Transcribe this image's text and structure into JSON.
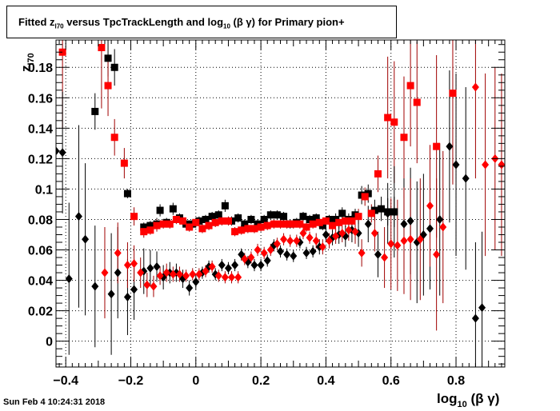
{
  "title": {
    "prefix": "Fitted  z",
    "prefix_sub": "I70",
    "middle": "  versus TpcTrackLength and log",
    "middle_sub": "10",
    "suffix": " (β γ) for Primary pion+"
  },
  "footer": "Sun Feb  4 10:24:31 2018",
  "chart_data": {
    "type": "scatter",
    "title": "Fitted z_I70 versus TpcTrackLength and log10 (β γ) for Primary pion+",
    "xlabel": {
      "main": "log",
      "sub": "10",
      "rest": " (β γ)"
    },
    "ylabel": {
      "main": "z",
      "sub": "I70"
    },
    "xlim": [
      -0.43,
      0.95
    ],
    "ylim": [
      -0.017,
      0.198
    ],
    "x_ticks": [
      -0.4,
      -0.2,
      0,
      0.2,
      0.4,
      0.6,
      0.8
    ],
    "x_tick_labels": [
      "−0.4",
      "−0.2",
      "0",
      "0.2",
      "0.4",
      "0.6",
      "0.8"
    ],
    "y_ticks": [
      0,
      0.02,
      0.04,
      0.06,
      0.08,
      0.1,
      0.12,
      0.14,
      0.16,
      0.18
    ],
    "y_tick_labels": [
      "0",
      "0.02",
      "0.04",
      "0.06",
      "0.08",
      "0.1",
      "0.12",
      "0.14",
      "0.16",
      "0.18"
    ],
    "grid": true,
    "colors": {
      "black": "#000000",
      "red": "#ff0000",
      "redbar": "#a00000"
    },
    "series": [
      {
        "marker": "square",
        "color": "#000000",
        "points": [
          [
            -0.31,
            0.151,
            0.012
          ],
          [
            -0.27,
            0.186,
            0.012
          ],
          [
            -0.25,
            0.18,
            0.012
          ],
          [
            -0.21,
            0.097,
            0.003
          ],
          [
            -0.16,
            0.075,
            0.003
          ],
          [
            -0.14,
            0.076,
            0.003
          ],
          [
            -0.12,
            0.077,
            0.004
          ],
          [
            -0.11,
            0.086,
            0.004
          ],
          [
            -0.09,
            0.078,
            0.003
          ],
          [
            -0.07,
            0.087,
            0.004
          ],
          [
            -0.05,
            0.081,
            0.003
          ],
          [
            -0.03,
            0.077,
            0.003
          ],
          [
            -0.01,
            0.077,
            0.003
          ],
          [
            0.01,
            0.079,
            0.003
          ],
          [
            0.03,
            0.08,
            0.003
          ],
          [
            0.05,
            0.082,
            0.003
          ],
          [
            0.07,
            0.083,
            0.003
          ],
          [
            0.09,
            0.089,
            0.004
          ],
          [
            0.11,
            0.079,
            0.003
          ],
          [
            0.13,
            0.081,
            0.003
          ],
          [
            0.15,
            0.077,
            0.003
          ],
          [
            0.17,
            0.08,
            0.003
          ],
          [
            0.19,
            0.077,
            0.003
          ],
          [
            0.21,
            0.08,
            0.003
          ],
          [
            0.23,
            0.083,
            0.003
          ],
          [
            0.25,
            0.083,
            0.003
          ],
          [
            0.27,
            0.082,
            0.003
          ],
          [
            0.29,
            0.077,
            0.003
          ],
          [
            0.31,
            0.078,
            0.003
          ],
          [
            0.33,
            0.082,
            0.003
          ],
          [
            0.35,
            0.08,
            0.003
          ],
          [
            0.37,
            0.081,
            0.003
          ],
          [
            0.39,
            0.076,
            0.003
          ],
          [
            0.41,
            0.08,
            0.003
          ],
          [
            0.43,
            0.08,
            0.004
          ],
          [
            0.45,
            0.084,
            0.004
          ],
          [
            0.47,
            0.08,
            0.004
          ],
          [
            0.49,
            0.083,
            0.004
          ],
          [
            0.51,
            0.096,
            0.006
          ],
          [
            0.53,
            0.097,
            0.006
          ],
          [
            0.55,
            0.086,
            0.007
          ],
          [
            0.57,
            0.087,
            0.008
          ],
          [
            0.59,
            0.085,
            0.009
          ],
          [
            0.61,
            0.085,
            0.01
          ]
        ]
      },
      {
        "marker": "square",
        "color": "#ff0000",
        "points": [
          [
            -0.41,
            0.19,
            0.05
          ],
          [
            -0.29,
            0.193,
            0.04
          ],
          [
            -0.27,
            0.168,
            0.02
          ],
          [
            -0.25,
            0.134,
            0.012
          ],
          [
            -0.22,
            0.117,
            0.01
          ],
          [
            -0.19,
            0.082,
            0.006
          ],
          [
            -0.16,
            0.072,
            0.004
          ],
          [
            -0.14,
            0.073,
            0.003
          ],
          [
            -0.12,
            0.076,
            0.004
          ],
          [
            -0.1,
            0.077,
            0.003
          ],
          [
            -0.08,
            0.077,
            0.003
          ],
          [
            -0.06,
            0.08,
            0.003
          ],
          [
            -0.04,
            0.079,
            0.003
          ],
          [
            -0.02,
            0.075,
            0.003
          ],
          [
            0.0,
            0.078,
            0.003
          ],
          [
            0.02,
            0.074,
            0.003
          ],
          [
            0.04,
            0.076,
            0.003
          ],
          [
            0.06,
            0.078,
            0.003
          ],
          [
            0.08,
            0.079,
            0.003
          ],
          [
            0.1,
            0.079,
            0.003
          ],
          [
            0.12,
            0.072,
            0.003
          ],
          [
            0.14,
            0.073,
            0.003
          ],
          [
            0.16,
            0.074,
            0.003
          ],
          [
            0.18,
            0.074,
            0.003
          ],
          [
            0.2,
            0.075,
            0.003
          ],
          [
            0.22,
            0.076,
            0.003
          ],
          [
            0.24,
            0.077,
            0.003
          ],
          [
            0.26,
            0.077,
            0.003
          ],
          [
            0.28,
            0.077,
            0.003
          ],
          [
            0.3,
            0.077,
            0.003
          ],
          [
            0.32,
            0.077,
            0.003
          ],
          [
            0.34,
            0.075,
            0.003
          ],
          [
            0.36,
            0.077,
            0.003
          ],
          [
            0.38,
            0.078,
            0.003
          ],
          [
            0.4,
            0.079,
            0.003
          ],
          [
            0.42,
            0.076,
            0.004
          ],
          [
            0.44,
            0.078,
            0.004
          ],
          [
            0.46,
            0.079,
            0.004
          ],
          [
            0.48,
            0.079,
            0.004
          ],
          [
            0.5,
            0.082,
            0.005
          ],
          [
            0.52,
            0.095,
            0.006
          ],
          [
            0.54,
            0.084,
            0.006
          ],
          [
            0.56,
            0.11,
            0.012
          ],
          [
            0.59,
            0.147,
            0.04
          ],
          [
            0.61,
            0.144,
            0.04
          ],
          [
            0.64,
            0.134,
            0.04
          ],
          [
            0.66,
            0.168,
            0.04
          ],
          [
            0.68,
            0.157,
            0.04
          ],
          [
            0.74,
            0.128,
            0.06
          ],
          [
            0.79,
            0.163,
            0.06
          ]
        ]
      },
      {
        "marker": "diamond",
        "color": "#000000",
        "points": [
          [
            -0.43,
            0.125,
            0.04
          ],
          [
            -0.41,
            0.124,
            0.04
          ],
          [
            -0.39,
            0.041,
            0.05
          ],
          [
            -0.36,
            0.082,
            0.06
          ],
          [
            -0.34,
            0.067,
            0.05
          ],
          [
            -0.31,
            0.036,
            0.04
          ],
          [
            -0.26,
            0.031,
            0.04
          ],
          [
            -0.24,
            0.045,
            0.03
          ],
          [
            -0.21,
            0.029,
            0.025
          ],
          [
            -0.19,
            0.034,
            0.02
          ],
          [
            -0.16,
            0.046,
            0.015
          ],
          [
            -0.14,
            0.048,
            0.012
          ],
          [
            -0.12,
            0.049,
            0.01
          ],
          [
            -0.1,
            0.042,
            0.008
          ],
          [
            -0.08,
            0.045,
            0.007
          ],
          [
            -0.06,
            0.045,
            0.006
          ],
          [
            -0.04,
            0.041,
            0.006
          ],
          [
            -0.02,
            0.035,
            0.005
          ],
          [
            0.0,
            0.039,
            0.005
          ],
          [
            0.02,
            0.045,
            0.004
          ],
          [
            0.04,
            0.049,
            0.004
          ],
          [
            0.06,
            0.044,
            0.004
          ],
          [
            0.08,
            0.05,
            0.004
          ],
          [
            0.1,
            0.048,
            0.004
          ],
          [
            0.12,
            0.05,
            0.004
          ],
          [
            0.14,
            0.057,
            0.004
          ],
          [
            0.16,
            0.052,
            0.004
          ],
          [
            0.18,
            0.05,
            0.004
          ],
          [
            0.2,
            0.05,
            0.004
          ],
          [
            0.22,
            0.053,
            0.004
          ],
          [
            0.24,
            0.063,
            0.004
          ],
          [
            0.26,
            0.059,
            0.004
          ],
          [
            0.28,
            0.057,
            0.004
          ],
          [
            0.3,
            0.056,
            0.004
          ],
          [
            0.32,
            0.065,
            0.004
          ],
          [
            0.34,
            0.058,
            0.004
          ],
          [
            0.36,
            0.059,
            0.004
          ],
          [
            0.38,
            0.062,
            0.005
          ],
          [
            0.4,
            0.07,
            0.005
          ],
          [
            0.42,
            0.068,
            0.005
          ],
          [
            0.44,
            0.07,
            0.006
          ],
          [
            0.46,
            0.069,
            0.007
          ],
          [
            0.48,
            0.073,
            0.008
          ],
          [
            0.5,
            0.071,
            0.009
          ],
          [
            0.53,
            0.077,
            0.012
          ],
          [
            0.56,
            0.057,
            0.015
          ],
          [
            0.59,
            0.084,
            0.02
          ],
          [
            0.61,
            0.085,
            0.03
          ],
          [
            0.64,
            0.077,
            0.03
          ],
          [
            0.66,
            0.079,
            0.035
          ],
          [
            0.68,
            0.065,
            0.04
          ],
          [
            0.7,
            0.07,
            0.04
          ],
          [
            0.72,
            0.074,
            0.04
          ],
          [
            0.75,
            0.08,
            0.05
          ],
          [
            0.78,
            0.128,
            0.05
          ],
          [
            0.8,
            0.116,
            0.06
          ],
          [
            0.83,
            0.107,
            0.06
          ],
          [
            0.86,
            0.015,
            0.05
          ],
          [
            0.88,
            0.022,
            0.05
          ]
        ]
      },
      {
        "marker": "diamond",
        "color": "#ff0000",
        "points": [
          [
            -0.28,
            0.045,
            0.03
          ],
          [
            -0.24,
            0.058,
            0.02
          ],
          [
            -0.21,
            0.05,
            0.015
          ],
          [
            -0.19,
            0.051,
            0.012
          ],
          [
            -0.17,
            0.045,
            0.01
          ],
          [
            -0.15,
            0.037,
            0.008
          ],
          [
            -0.13,
            0.036,
            0.007
          ],
          [
            -0.11,
            0.043,
            0.006
          ],
          [
            -0.09,
            0.045,
            0.006
          ],
          [
            -0.07,
            0.044,
            0.005
          ],
          [
            -0.05,
            0.044,
            0.005
          ],
          [
            -0.03,
            0.043,
            0.004
          ],
          [
            -0.01,
            0.044,
            0.004
          ],
          [
            0.01,
            0.044,
            0.004
          ],
          [
            0.03,
            0.046,
            0.004
          ],
          [
            0.05,
            0.049,
            0.004
          ],
          [
            0.07,
            0.043,
            0.004
          ],
          [
            0.09,
            0.042,
            0.004
          ],
          [
            0.11,
            0.042,
            0.004
          ],
          [
            0.13,
            0.042,
            0.004
          ],
          [
            0.15,
            0.054,
            0.004
          ],
          [
            0.17,
            0.055,
            0.004
          ],
          [
            0.19,
            0.06,
            0.004
          ],
          [
            0.21,
            0.058,
            0.004
          ],
          [
            0.23,
            0.06,
            0.004
          ],
          [
            0.25,
            0.064,
            0.004
          ],
          [
            0.27,
            0.067,
            0.004
          ],
          [
            0.29,
            0.066,
            0.004
          ],
          [
            0.31,
            0.066,
            0.004
          ],
          [
            0.33,
            0.071,
            0.004
          ],
          [
            0.35,
            0.068,
            0.004
          ],
          [
            0.37,
            0.066,
            0.005
          ],
          [
            0.39,
            0.062,
            0.005
          ],
          [
            0.41,
            0.066,
            0.005
          ],
          [
            0.43,
            0.069,
            0.005
          ],
          [
            0.45,
            0.071,
            0.006
          ],
          [
            0.47,
            0.073,
            0.007
          ],
          [
            0.49,
            0.072,
            0.008
          ],
          [
            0.51,
            0.058,
            0.009
          ],
          [
            0.55,
            0.071,
            0.012
          ],
          [
            0.58,
            0.055,
            0.02
          ],
          [
            0.6,
            0.064,
            0.03
          ],
          [
            0.62,
            0.063,
            0.03
          ],
          [
            0.64,
            0.066,
            0.035
          ],
          [
            0.66,
            0.067,
            0.04
          ],
          [
            0.69,
            0.067,
            0.04
          ],
          [
            0.72,
            0.089,
            0.04
          ],
          [
            0.74,
            0.057,
            0.05
          ],
          [
            0.76,
            0.075,
            0.05
          ],
          [
            0.86,
            0.167,
            0.06
          ],
          [
            0.89,
            0.116,
            0.06
          ],
          [
            0.92,
            0.12,
            0.06
          ],
          [
            0.94,
            0.116,
            0.06
          ]
        ]
      }
    ]
  }
}
